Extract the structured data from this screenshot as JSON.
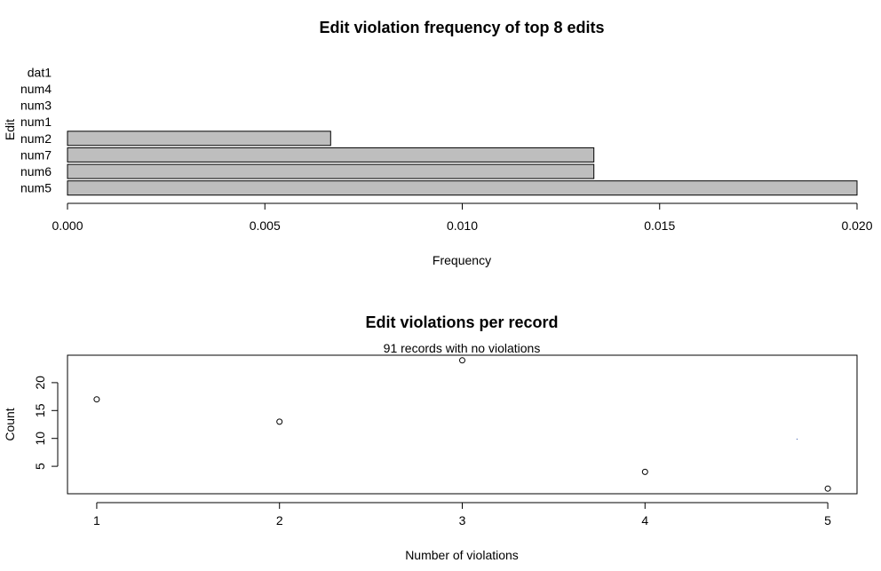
{
  "chart_data": [
    {
      "type": "bar",
      "orientation": "horizontal",
      "title": "Edit violation frequency of top 8 edits",
      "xlabel": "Frequency",
      "ylabel": "Edit",
      "xlim": [
        0,
        0.02
      ],
      "xticks": [
        "0.000",
        "0.005",
        "0.010",
        "0.015",
        "0.020"
      ],
      "categories": [
        "num5",
        "num6",
        "num7",
        "num2",
        "num1",
        "num3",
        "num4",
        "dat1"
      ],
      "values": [
        0.02,
        0.013333,
        0.013333,
        0.006667,
        0,
        0,
        0,
        0
      ]
    },
    {
      "type": "scatter",
      "title": "Edit violations per record",
      "subtitle": "91 records with no violations",
      "xlabel": "Number of violations",
      "ylabel": "Count",
      "xticks": [
        "1",
        "2",
        "3",
        "4",
        "5"
      ],
      "yticks": [
        "5",
        "10",
        "15",
        "20"
      ],
      "x": [
        1,
        2,
        3,
        4,
        5
      ],
      "y": [
        17,
        13,
        24,
        4,
        1
      ],
      "xlim": [
        0.84,
        5.16
      ],
      "ylim": [
        0.08,
        24.92
      ]
    }
  ]
}
